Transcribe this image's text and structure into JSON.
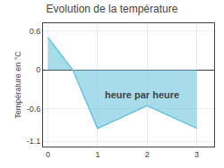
{
  "chart_data": {
    "type": "area",
    "title": "Evolution de la température",
    "y_label": "Température en °C",
    "annotations": [
      {
        "text": "heure par heure",
        "x": 1.9,
        "y": -0.38
      }
    ],
    "x": [
      0,
      0.5,
      1,
      2,
      3
    ],
    "values": [
      0.5,
      0.0,
      -0.9,
      -0.55,
      -0.9
    ],
    "color": "#6cc5dc",
    "xlim": [
      -0.1,
      3.35
    ],
    "ylim": [
      -1.18,
      0.72
    ],
    "xticks": [
      0,
      1,
      2,
      3
    ],
    "yticks": [
      -1.1,
      -0.6,
      0.0,
      0.6
    ],
    "grid": true
  }
}
